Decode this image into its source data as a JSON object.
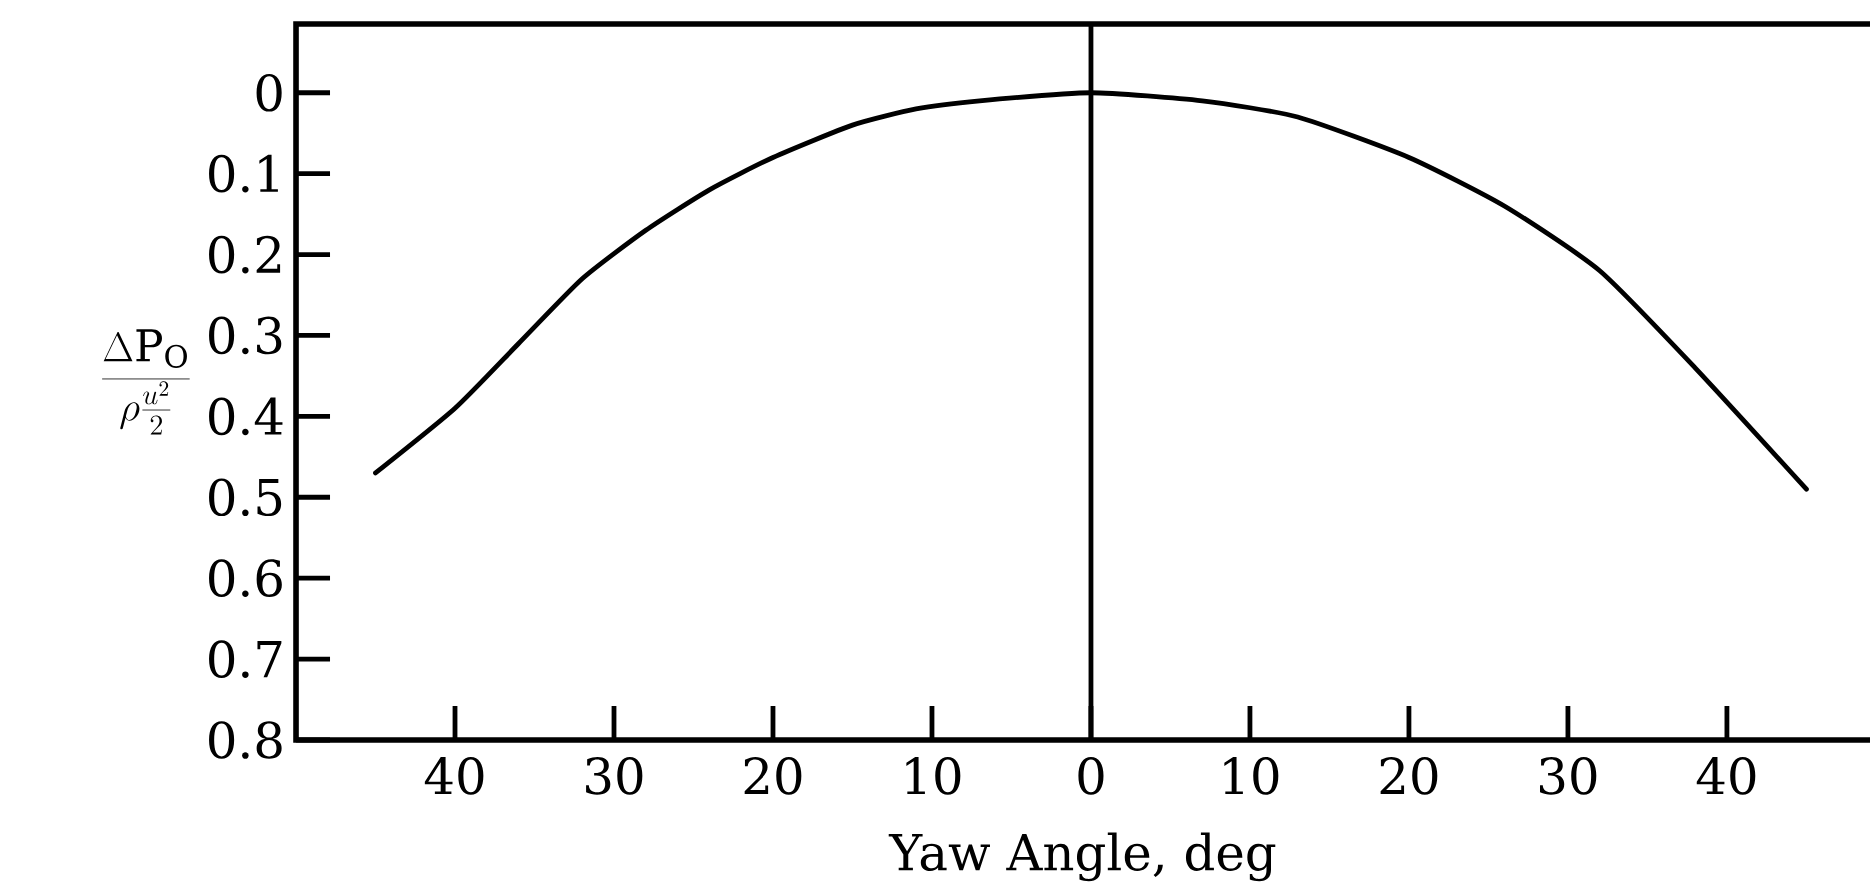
{
  "chart_data": {
    "type": "line",
    "xlabel": "Yaw Angle, deg",
    "ylabel": "\\frac{\\Delta \\mathrm{P}_{\\mathrm{O}}}{\\rho\\frac{u^{2}}{2}}",
    "x": [
      -45,
      -40,
      -36,
      -32,
      -28,
      -24,
      -20,
      -15,
      -11,
      -7,
      0,
      7,
      13,
      20,
      26,
      32,
      38,
      45
    ],
    "values": [
      0.47,
      0.39,
      0.31,
      0.23,
      0.17,
      0.12,
      0.08,
      0.04,
      0.02,
      0.01,
      0,
      0.01,
      0.03,
      0.08,
      0.14,
      0.22,
      0.34,
      0.49
    ],
    "color": "#000000",
    "xlim": [
      -50,
      49
    ],
    "ylim": [
      0.8,
      -0.085
    ],
    "xticks": [
      {
        "value": -40,
        "label": "40"
      },
      {
        "value": -30,
        "label": "30"
      },
      {
        "value": -20,
        "label": "20"
      },
      {
        "value": -10,
        "label": "10"
      },
      0,
      10,
      20,
      30,
      40
    ],
    "yticks": [
      0,
      0.1,
      0.2,
      0.3,
      0.4,
      0.5,
      0.6,
      0.7,
      0.8
    ],
    "ref_lines": [
      {
        "axis": "x",
        "value": 0,
        "color": "#000000"
      }
    ]
  }
}
